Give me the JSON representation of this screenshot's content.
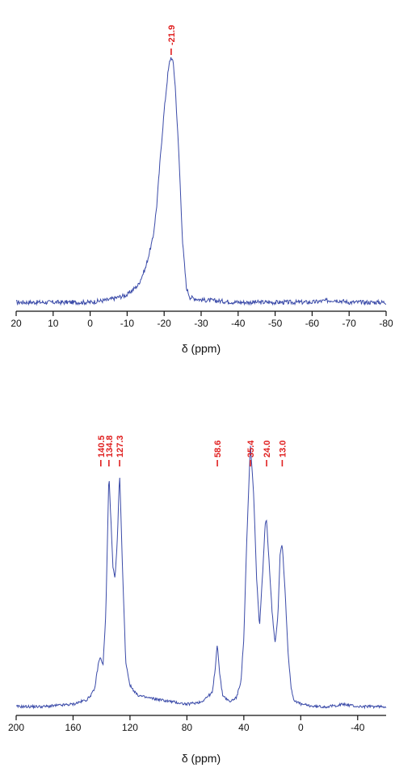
{
  "colors": {
    "trace": "#3a4aa8",
    "peak_label": "#e02020",
    "axis": "#111111"
  },
  "chart_data": [
    {
      "type": "line",
      "xlabel": "δ (ppm)",
      "ylabel": "",
      "title": "",
      "xlim": [
        20,
        -80
      ],
      "x_reversed": true,
      "x_ticks": [
        20,
        10,
        0,
        -10,
        -20,
        -30,
        -40,
        -50,
        -60,
        -70,
        -80
      ],
      "x_tick_labels": [
        "20",
        "10",
        "0",
        "-10",
        "-20",
        "-30",
        "-40",
        "-50",
        "-60",
        "-70",
        "-80"
      ],
      "y_axis_visible": false,
      "grid": false,
      "peaks": [
        {
          "x": -21.9,
          "label": "-21.9"
        }
      ],
      "series": [
        {
          "x": [
            20,
            10,
            0,
            -5,
            -10,
            -13,
            -15,
            -17,
            -18,
            -19,
            -20,
            -21,
            -21.5,
            -21.9,
            -22.5,
            -23,
            -24,
            -25,
            -26,
            -27,
            -30,
            -40,
            -50,
            -60,
            -66,
            -70,
            -80
          ],
          "y": [
            0.01,
            0.01,
            0.01,
            0.02,
            0.04,
            0.08,
            0.15,
            0.27,
            0.4,
            0.6,
            0.78,
            0.93,
            0.98,
            1.0,
            0.97,
            0.88,
            0.6,
            0.25,
            0.07,
            0.03,
            0.02,
            0.01,
            0.01,
            0.01,
            0.02,
            0.01,
            0.01
          ]
        }
      ]
    },
    {
      "type": "line",
      "xlabel": "δ (ppm)",
      "ylabel": "",
      "title": "",
      "xlim": [
        200,
        -60
      ],
      "x_reversed": true,
      "x_ticks": [
        200,
        160,
        120,
        80,
        40,
        0,
        -40
      ],
      "x_tick_labels": [
        "200",
        "160",
        "120",
        "80",
        "40",
        "0",
        "-40"
      ],
      "y_axis_visible": false,
      "grid": false,
      "peaks": [
        {
          "x": 140.5,
          "label": "140.5"
        },
        {
          "x": 134.8,
          "label": "134.8"
        },
        {
          "x": 127.3,
          "label": "127.3"
        },
        {
          "x": 58.6,
          "label": "58.6"
        },
        {
          "x": 35.4,
          "label": "35.4"
        },
        {
          "x": 24.0,
          "label": "24.0"
        },
        {
          "x": 13.0,
          "label": "13.0"
        }
      ],
      "series": [
        {
          "x": [
            200,
            180,
            160,
            150,
            145,
            142,
            140.5,
            139,
            137,
            134.8,
            132,
            130.5,
            129,
            127.3,
            125,
            123,
            120,
            115,
            110,
            100,
            90,
            80,
            70,
            62,
            60,
            58.6,
            57,
            55,
            50,
            45,
            42,
            40,
            38,
            35.4,
            33,
            31,
            29,
            27,
            25,
            24.0,
            22,
            20,
            18,
            16,
            14.5,
            13.0,
            11,
            9,
            7,
            5,
            0,
            -10,
            -20,
            -30,
            -40,
            -50,
            -60
          ],
          "y": [
            0.01,
            0.01,
            0.02,
            0.04,
            0.08,
            0.2,
            0.22,
            0.18,
            0.4,
            1.0,
            0.6,
            0.55,
            0.7,
            1.0,
            0.55,
            0.2,
            0.1,
            0.06,
            0.05,
            0.04,
            0.03,
            0.02,
            0.03,
            0.07,
            0.18,
            0.28,
            0.15,
            0.06,
            0.03,
            0.05,
            0.12,
            0.3,
            0.7,
            1.12,
            0.9,
            0.55,
            0.35,
            0.55,
            0.78,
            0.8,
            0.6,
            0.4,
            0.28,
            0.4,
            0.66,
            0.7,
            0.5,
            0.25,
            0.1,
            0.04,
            0.02,
            0.01,
            0.01,
            0.02,
            0.01,
            0.01,
            0.01
          ]
        }
      ]
    }
  ]
}
